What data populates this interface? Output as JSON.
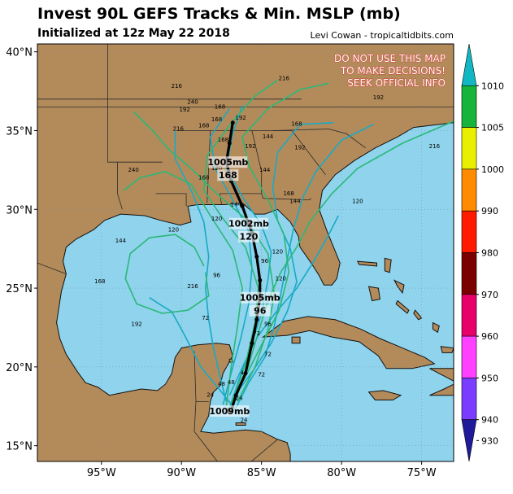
{
  "header": {
    "title": "Invest 90L GEFS Tracks & Min. MSLP (mb)",
    "subtitle": "Initialized at 12z May 22 2018",
    "credit": "Levi Cowan - tropicaltidbits.com"
  },
  "warning": [
    "DO NOT USE THIS MAP",
    "TO MAKE DECISIONS!",
    "SEEK OFFICIAL INFO"
  ],
  "map": {
    "lon_range": [
      -99,
      -73
    ],
    "lat_range": [
      14,
      40.5
    ],
    "lat_ticks": [
      {
        "v": 40,
        "label": "40°N"
      },
      {
        "v": 35,
        "label": "35°N"
      },
      {
        "v": 30,
        "label": "30°N"
      },
      {
        "v": 25,
        "label": "25°N"
      },
      {
        "v": 20,
        "label": "20°N"
      },
      {
        "v": 15,
        "label": "15°N"
      }
    ],
    "lon_ticks": [
      {
        "v": -95,
        "label": "95°W"
      },
      {
        "v": -90,
        "label": "90°W"
      },
      {
        "v": -85,
        "label": "85°W"
      },
      {
        "v": -80,
        "label": "80°W"
      },
      {
        "v": -75,
        "label": "75°W"
      }
    ],
    "colors": {
      "ocean": "#8fd3ec",
      "land": "#b38b5b",
      "border": "#2a2a2a"
    }
  },
  "colorbar": {
    "ticks": [
      "1010",
      "1005",
      "1000",
      "990",
      "980",
      "970",
      "960",
      "950",
      "940",
      "930"
    ],
    "colors": [
      "#11b8c4",
      "#16b43a",
      "#e8f000",
      "#ff8c00",
      "#ff1a00",
      "#7a0000",
      "#e8006a",
      "#ff40ff",
      "#7a3dff",
      "#1f1a9a"
    ]
  },
  "mean_track": {
    "color": "#000000",
    "points": [
      [
        -86.9,
        17.2
      ],
      [
        -86.6,
        18.2
      ],
      [
        -86.0,
        19.6
      ],
      [
        -85.6,
        21.5
      ],
      [
        -85.3,
        23.0
      ],
      [
        -85.1,
        24.4
      ],
      [
        -85.1,
        25.5
      ],
      [
        -85.3,
        27.0
      ],
      [
        -85.6,
        28.5
      ],
      [
        -86.2,
        30.2
      ],
      [
        -86.9,
        31.8
      ],
      [
        -87.2,
        33.0
      ],
      [
        -87.0,
        34.2
      ],
      [
        -86.8,
        35.5
      ]
    ],
    "markers": [
      {
        "lon": -87.0,
        "lat": 17.2,
        "label": "1009mb"
      },
      {
        "lon": -85.1,
        "lat": 24.4,
        "label": "1005mb",
        "hour": "96"
      },
      {
        "lon": -85.8,
        "lat": 29.1,
        "label": "1002mb",
        "hour": "120"
      },
      {
        "lon": -87.1,
        "lat": 33.0,
        "label": "1005mb",
        "hour": "168"
      }
    ]
  },
  "tracks": [
    {
      "color": "#1aa9c4",
      "points": [
        [
          -87.0,
          17.4
        ],
        [
          -86.4,
          19.2
        ],
        [
          -85.7,
          21.2
        ],
        [
          -85.0,
          23.4
        ],
        [
          -84.6,
          25.5
        ],
        [
          -84.4,
          27.3
        ],
        [
          -85.0,
          29.0
        ],
        [
          -86.2,
          30.8
        ],
        [
          -87.2,
          32.6
        ],
        [
          -86.8,
          34.8
        ],
        [
          -86.2,
          36.6
        ]
      ]
    },
    {
      "color": "#1aa9c4",
      "points": [
        [
          -87.4,
          17.6
        ],
        [
          -86.9,
          19.6
        ],
        [
          -86.3,
          21.8
        ],
        [
          -85.8,
          24.0
        ],
        [
          -85.6,
          26.3
        ],
        [
          -85.8,
          28.6
        ],
        [
          -86.8,
          30.6
        ],
        [
          -87.9,
          32.6
        ],
        [
          -88.2,
          34.6
        ],
        [
          -87.0,
          36.4
        ]
      ]
    },
    {
      "color": "#1aa9c4",
      "points": [
        [
          -86.6,
          17.4
        ],
        [
          -85.8,
          19.0
        ],
        [
          -84.8,
          20.6
        ],
        [
          -84.2,
          22.6
        ],
        [
          -83.8,
          24.6
        ],
        [
          -83.4,
          26.8
        ],
        [
          -83.0,
          28.8
        ],
        [
          -82.4,
          30.8
        ],
        [
          -81.6,
          32.4
        ],
        [
          -80.0,
          34.4
        ],
        [
          -78.0,
          35.4
        ]
      ]
    },
    {
      "color": "#1aa9c4",
      "points": [
        [
          -87.2,
          17.8
        ],
        [
          -87.6,
          19.4
        ],
        [
          -88.0,
          21.2
        ],
        [
          -88.3,
          23.0
        ],
        [
          -88.5,
          25.0
        ],
        [
          -88.3,
          27.0
        ],
        [
          -88.6,
          29.2
        ],
        [
          -89.3,
          31.0
        ],
        [
          -90.4,
          33.2
        ],
        [
          -90.4,
          35.0
        ]
      ]
    },
    {
      "color": "#1aa9c4",
      "points": [
        [
          -86.8,
          18.0
        ],
        [
          -85.5,
          19.8
        ],
        [
          -84.4,
          21.5
        ],
        [
          -83.4,
          23.5
        ],
        [
          -82.8,
          25.4
        ],
        [
          -83.2,
          27.5
        ],
        [
          -84.0,
          29.3
        ],
        [
          -84.3,
          31.4
        ],
        [
          -84.0,
          33.6
        ],
        [
          -82.6,
          35.4
        ],
        [
          -80.5,
          35.5
        ]
      ]
    },
    {
      "color": "#1aa9c4",
      "points": [
        [
          -86.4,
          17.0
        ],
        [
          -87.5,
          18.4
        ],
        [
          -88.8,
          20.0
        ],
        [
          -89.8,
          22.0
        ],
        [
          -90.6,
          23.5
        ],
        [
          -91.4,
          24.0
        ],
        [
          -92.0,
          24.4
        ]
      ]
    },
    {
      "color": "#1aa9c4",
      "points": [
        [
          -87.0,
          18.2
        ],
        [
          -86.0,
          20.4
        ],
        [
          -85.2,
          22.0
        ],
        [
          -84.0,
          23.6
        ],
        [
          -82.8,
          25.0
        ],
        [
          -81.8,
          26.6
        ],
        [
          -80.8,
          28.4
        ],
        [
          -80.2,
          29.6
        ]
      ]
    },
    {
      "color": "#2ab878",
      "points": [
        [
          -86.8,
          17.5
        ],
        [
          -85.9,
          19.8
        ],
        [
          -85.2,
          22.2
        ],
        [
          -84.6,
          24.2
        ],
        [
          -83.8,
          26.0
        ],
        [
          -82.8,
          27.6
        ],
        [
          -82.0,
          29.2
        ],
        [
          -80.6,
          31.0
        ],
        [
          -79.0,
          32.6
        ],
        [
          -76.2,
          34.2
        ],
        [
          -73.0,
          35.6
        ]
      ]
    },
    {
      "color": "#2ab878",
      "points": [
        [
          -86.5,
          17.8
        ],
        [
          -85.4,
          20.0
        ],
        [
          -84.6,
          22.4
        ],
        [
          -84.2,
          24.6
        ],
        [
          -84.6,
          27.2
        ],
        [
          -86.0,
          29.4
        ],
        [
          -87.8,
          31.0
        ],
        [
          -89.4,
          32.6
        ],
        [
          -90.8,
          33.8
        ],
        [
          -91.8,
          35.0
        ],
        [
          -93.0,
          36.2
        ]
      ]
    },
    {
      "color": "#2ab878",
      "points": [
        [
          -86.9,
          17.6
        ],
        [
          -86.0,
          20.2
        ],
        [
          -85.4,
          22.8
        ],
        [
          -85.2,
          25.0
        ],
        [
          -86.0,
          27.6
        ],
        [
          -87.4,
          29.4
        ],
        [
          -88.6,
          31.2
        ],
        [
          -88.4,
          33.4
        ],
        [
          -86.8,
          35.6
        ],
        [
          -85.4,
          37.2
        ],
        [
          -84.0,
          38.2
        ]
      ]
    },
    {
      "color": "#2ab878",
      "points": [
        [
          -87.2,
          17.5
        ],
        [
          -86.9,
          20.0
        ],
        [
          -86.5,
          22.6
        ],
        [
          -86.2,
          25.0
        ],
        [
          -86.8,
          27.4
        ],
        [
          -88.2,
          29.6
        ],
        [
          -89.4,
          31.6
        ],
        [
          -91.0,
          32.4
        ],
        [
          -92.6,
          32.0
        ],
        [
          -93.6,
          31.2
        ]
      ]
    },
    {
      "color": "#2ab878",
      "points": [
        [
          -88.5,
          26.0
        ],
        [
          -88.3,
          24.5
        ],
        [
          -89.6,
          23.6
        ],
        [
          -91.2,
          23.4
        ],
        [
          -92.8,
          24.0
        ],
        [
          -93.5,
          25.6
        ],
        [
          -93.2,
          27.2
        ],
        [
          -92.0,
          28.2
        ],
        [
          -90.4,
          28.4
        ],
        [
          -89.2,
          27.6
        ],
        [
          -88.6,
          26.4
        ]
      ]
    },
    {
      "color": "#2ab878",
      "points": [
        [
          -86.5,
          18.4
        ],
        [
          -85.2,
          21.0
        ],
        [
          -83.9,
          23.6
        ],
        [
          -83.3,
          26.0
        ],
        [
          -83.6,
          28.4
        ],
        [
          -84.6,
          30.6
        ],
        [
          -85.8,
          32.8
        ],
        [
          -86.2,
          34.6
        ],
        [
          -84.6,
          36.4
        ],
        [
          -82.6,
          37.6
        ],
        [
          -80.8,
          38.0
        ]
      ]
    }
  ],
  "hour_labels": [
    {
      "lon": -90.3,
      "lat": 37.7,
      "text": "216"
    },
    {
      "lon": -89.3,
      "lat": 36.7,
      "text": "240"
    },
    {
      "lon": -89.8,
      "lat": 36.2,
      "text": "192"
    },
    {
      "lon": -87.6,
      "lat": 36.4,
      "text": "168"
    },
    {
      "lon": -86.3,
      "lat": 35.7,
      "text": "192"
    },
    {
      "lon": -87.8,
      "lat": 35.6,
      "text": "168"
    },
    {
      "lon": -88.6,
      "lat": 35.2,
      "text": "168"
    },
    {
      "lon": -90.2,
      "lat": 35.0,
      "text": "216"
    },
    {
      "lon": -84.6,
      "lat": 34.5,
      "text": "144"
    },
    {
      "lon": -82.8,
      "lat": 35.3,
      "text": "168"
    },
    {
      "lon": -85.7,
      "lat": 33.9,
      "text": "192"
    },
    {
      "lon": -82.6,
      "lat": 33.8,
      "text": "192"
    },
    {
      "lon": -87.4,
      "lat": 34.3,
      "text": "168"
    },
    {
      "lon": -87.0,
      "lat": 32.2,
      "text": "168"
    },
    {
      "lon": -87.8,
      "lat": 32.5,
      "text": "120"
    },
    {
      "lon": -88.6,
      "lat": 31.9,
      "text": "168"
    },
    {
      "lon": -84.8,
      "lat": 32.4,
      "text": "144"
    },
    {
      "lon": -83.3,
      "lat": 30.9,
      "text": "168"
    },
    {
      "lon": -82.9,
      "lat": 30.4,
      "text": "144"
    },
    {
      "lon": -79.0,
      "lat": 30.4,
      "text": "120"
    },
    {
      "lon": -77.7,
      "lat": 37.0,
      "text": "192"
    },
    {
      "lon": -74.2,
      "lat": 33.9,
      "text": "216"
    },
    {
      "lon": -83.6,
      "lat": 38.2,
      "text": "216"
    },
    {
      "lon": -93.0,
      "lat": 32.4,
      "text": "240"
    },
    {
      "lon": -90.5,
      "lat": 28.6,
      "text": "120"
    },
    {
      "lon": -87.8,
      "lat": 29.3,
      "text": "120"
    },
    {
      "lon": -86.6,
      "lat": 30.2,
      "text": "144"
    },
    {
      "lon": -84.0,
      "lat": 27.2,
      "text": "120"
    },
    {
      "lon": -93.8,
      "lat": 27.9,
      "text": "144"
    },
    {
      "lon": -95.1,
      "lat": 25.3,
      "text": "168"
    },
    {
      "lon": -89.3,
      "lat": 25.0,
      "text": "216"
    },
    {
      "lon": -92.8,
      "lat": 22.6,
      "text": "192"
    },
    {
      "lon": -87.8,
      "lat": 25.7,
      "text": "96"
    },
    {
      "lon": -84.8,
      "lat": 26.6,
      "text": "96"
    },
    {
      "lon": -83.8,
      "lat": 25.5,
      "text": "120"
    },
    {
      "lon": -84.3,
      "lat": 24.3,
      "text": "96"
    },
    {
      "lon": -84.6,
      "lat": 22.6,
      "text": "96"
    },
    {
      "lon": -88.5,
      "lat": 23.0,
      "text": "72"
    },
    {
      "lon": -85.3,
      "lat": 22.0,
      "text": "72"
    },
    {
      "lon": -84.6,
      "lat": 20.7,
      "text": "72"
    },
    {
      "lon": -85.0,
      "lat": 19.4,
      "text": "72"
    },
    {
      "lon": -86.1,
      "lat": 19.5,
      "text": "48"
    },
    {
      "lon": -86.9,
      "lat": 18.9,
      "text": "48"
    },
    {
      "lon": -87.5,
      "lat": 18.8,
      "text": "48"
    },
    {
      "lon": -88.2,
      "lat": 18.1,
      "text": "24"
    },
    {
      "lon": -86.4,
      "lat": 17.9,
      "text": "24"
    },
    {
      "lon": -86.1,
      "lat": 16.5,
      "text": "24"
    }
  ]
}
